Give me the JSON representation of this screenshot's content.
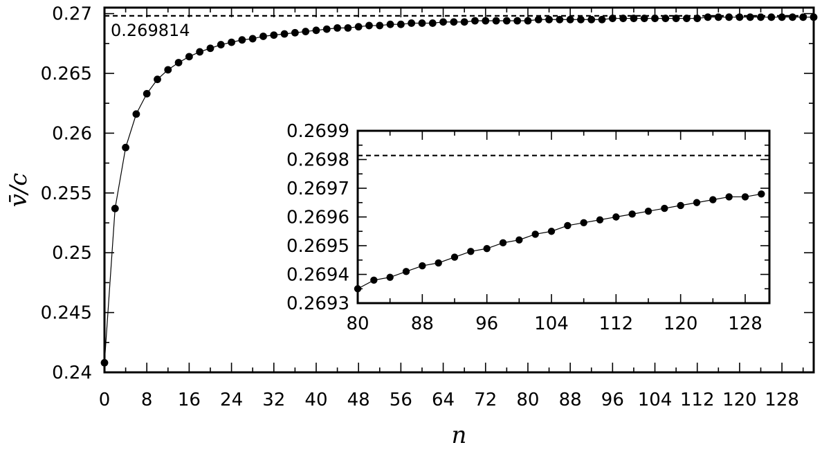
{
  "chart_data": [
    {
      "type": "scatter",
      "title": "",
      "xlabel": "n",
      "ylabel": "v̄/c",
      "xlim": [
        0,
        134
      ],
      "ylim": [
        0.24,
        0.2705
      ],
      "xticks": [
        0,
        8,
        16,
        24,
        32,
        40,
        48,
        56,
        64,
        72,
        80,
        88,
        96,
        104,
        112,
        120,
        128
      ],
      "yticks": [
        0.24,
        0.245,
        0.25,
        0.255,
        0.26,
        0.265,
        0.27
      ],
      "ytick_labels": [
        "0.24",
        "0.245",
        "0.25",
        "0.255",
        "0.26",
        "0.265",
        "0.27"
      ],
      "grid": false,
      "reference_line": {
        "y": 0.269814,
        "label": "0.269814",
        "style": "dashed"
      },
      "series": [
        {
          "marker": "filled-circle",
          "line": "thin solid fit curve",
          "x": [
            0,
            2,
            4,
            6,
            8,
            10,
            12,
            14,
            16,
            18,
            20,
            22,
            24,
            26,
            28,
            30,
            32,
            34,
            36,
            38,
            40,
            42,
            44,
            46,
            48,
            50,
            52,
            54,
            56,
            58,
            60,
            62,
            64,
            66,
            68,
            70,
            72,
            74,
            76,
            78,
            80,
            82,
            84,
            86,
            88,
            90,
            92,
            94,
            96,
            98,
            100,
            102,
            104,
            106,
            108,
            110,
            112,
            114,
            116,
            118,
            120,
            122,
            124,
            126,
            128,
            130,
            132,
            134
          ],
          "y": [
            0.2408,
            0.2537,
            0.2588,
            0.2616,
            0.2633,
            0.2645,
            0.2653,
            0.2659,
            0.2664,
            0.2668,
            0.2671,
            0.2674,
            0.2676,
            0.2678,
            0.2679,
            0.2681,
            0.2682,
            0.2683,
            0.2684,
            0.2685,
            0.2686,
            0.2687,
            0.2688,
            0.2688,
            0.2689,
            0.269,
            0.269,
            0.2691,
            0.2691,
            0.2692,
            0.2692,
            0.2692,
            0.2693,
            0.2693,
            0.2693,
            0.2694,
            0.2694,
            0.2694,
            0.2694,
            0.2694,
            0.2694,
            0.2695,
            0.2695,
            0.2695,
            0.2695,
            0.2695,
            0.2695,
            0.2695,
            0.2696,
            0.2696,
            0.2696,
            0.2696,
            0.2696,
            0.2696,
            0.2696,
            0.2696,
            0.2696,
            0.2697,
            0.2697,
            0.2697,
            0.2697,
            0.2697,
            0.2697,
            0.2697,
            0.2697,
            0.2697,
            0.2697,
            0.2697
          ]
        }
      ]
    },
    {
      "type": "scatter",
      "title": "",
      "xlabel": "",
      "ylabel": "",
      "xlim": [
        80,
        131
      ],
      "ylim": [
        0.2693,
        0.2699
      ],
      "xticks": [
        80,
        88,
        96,
        104,
        112,
        120,
        128
      ],
      "yticks": [
        0.2693,
        0.2694,
        0.2695,
        0.2696,
        0.2697,
        0.2698,
        0.2699
      ],
      "ytick_labels": [
        "0.2693",
        "0.2694",
        "0.2695",
        "0.2696",
        "0.2697",
        "0.2698",
        "0.2699"
      ],
      "grid": false,
      "reference_line": {
        "y": 0.269814,
        "style": "dashed"
      },
      "series": [
        {
          "marker": "filled-circle",
          "line": "thin solid fit curve",
          "x": [
            80,
            82,
            84,
            86,
            88,
            90,
            92,
            94,
            96,
            98,
            100,
            102,
            104,
            106,
            108,
            110,
            112,
            114,
            116,
            118,
            120,
            122,
            124,
            126,
            128,
            130
          ],
          "y": [
            0.26935,
            0.26938,
            0.26939,
            0.26941,
            0.26943,
            0.26944,
            0.26946,
            0.26948,
            0.26949,
            0.26951,
            0.26952,
            0.26954,
            0.26955,
            0.26957,
            0.26958,
            0.26959,
            0.2696,
            0.26961,
            0.26962,
            0.26963,
            0.26964,
            0.26965,
            0.26966,
            0.26967,
            0.26967,
            0.26968
          ]
        }
      ]
    }
  ]
}
